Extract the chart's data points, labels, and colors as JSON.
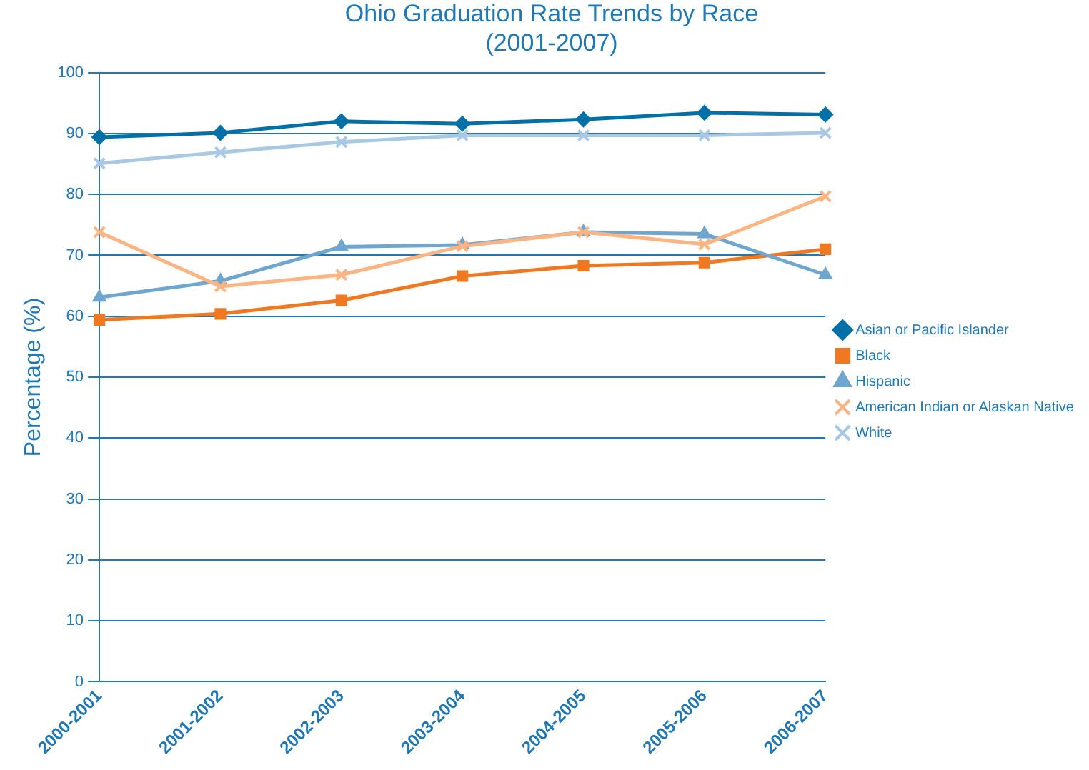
{
  "chart_data": {
    "type": "line",
    "title": "Ohio Graduation Rate Trends by Race\n(2001-2007)",
    "ylabel": "Percentage (%)",
    "categories": [
      "2000-2001",
      "2001-2002",
      "2002-2003",
      "2003-2004",
      "2004-2005",
      "2005-2006",
      "2006-2007"
    ],
    "series": [
      {
        "name": "Asian or Pacific Islander",
        "color": "#0070a8",
        "marker": "diamond",
        "values": [
          89.4,
          90.1,
          92.0,
          91.6,
          92.3,
          93.4,
          93.1
        ]
      },
      {
        "name": "Black",
        "color": "#f07820",
        "marker": "square",
        "values": [
          59.4,
          60.4,
          62.6,
          66.6,
          68.3,
          68.8,
          71.0
        ]
      },
      {
        "name": "Hispanic",
        "color": "#6fa6d0",
        "marker": "triangle",
        "values": [
          63.1,
          65.8,
          71.4,
          71.7,
          73.8,
          73.5,
          66.8
        ]
      },
      {
        "name": "American Indian or Alaskan Native",
        "color": "#fbb482",
        "marker": "cross",
        "values": [
          73.8,
          64.9,
          66.8,
          71.5,
          73.8,
          71.8,
          79.7
        ]
      },
      {
        "name": "White",
        "color": "#a9c8e4",
        "marker": "cross",
        "values": [
          85.1,
          86.9,
          88.6,
          89.7,
          89.7,
          89.7,
          90.1
        ]
      }
    ],
    "ylim": [
      0,
      100
    ],
    "yticks": [
      0,
      10,
      20,
      30,
      40,
      50,
      60,
      70,
      80,
      90,
      100
    ],
    "grid": "y",
    "legend": "right",
    "line_style": "solid"
  }
}
